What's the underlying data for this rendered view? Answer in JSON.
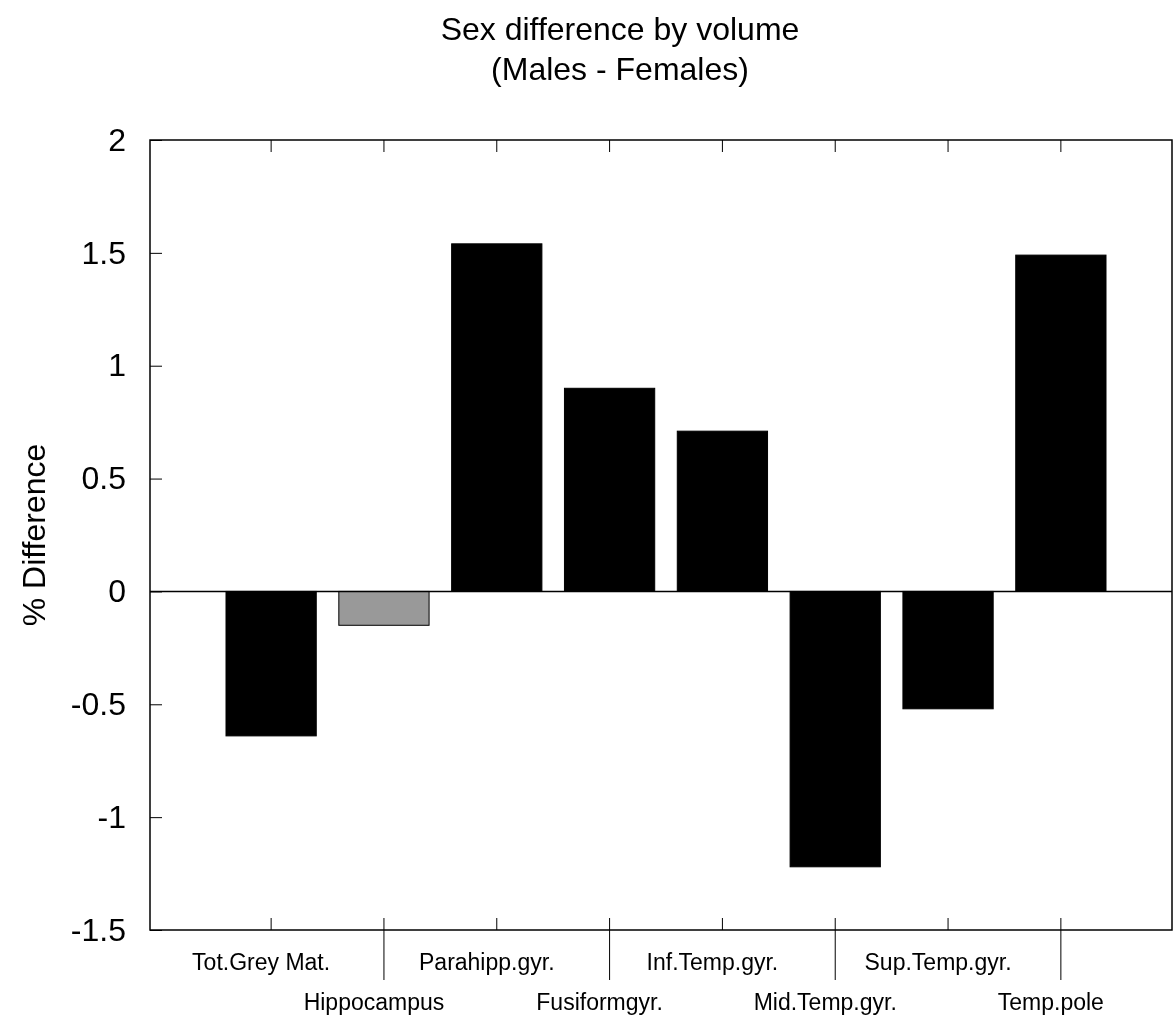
{
  "chart_data": {
    "type": "bar",
    "title": "Sex difference by volume\n(Males - Females)",
    "ylabel": "% Difference",
    "categories": [
      "Tot.Grey Mat.",
      "Hippocampus",
      "Parahipp.gyr.",
      "Fusiformgyr.",
      "Inf.Temp.gyr.",
      "Mid.Temp.gyr.",
      "Sup.Temp.gyr.",
      "Temp.pole"
    ],
    "values": [
      -0.64,
      -0.15,
      1.54,
      0.9,
      0.71,
      -1.22,
      -0.52,
      1.49
    ],
    "colors": [
      "#000000",
      "#999999",
      "#000000",
      "#000000",
      "#000000",
      "#000000",
      "#000000",
      "#000000"
    ],
    "ylim": [
      -1.5,
      2
    ],
    "yticks": [
      -1.5,
      -1,
      -0.5,
      0,
      0.5,
      1,
      1.5,
      2
    ],
    "ref_lines": [
      {
        "axis": "y",
        "value": 0,
        "color": "#000000"
      }
    ]
  }
}
